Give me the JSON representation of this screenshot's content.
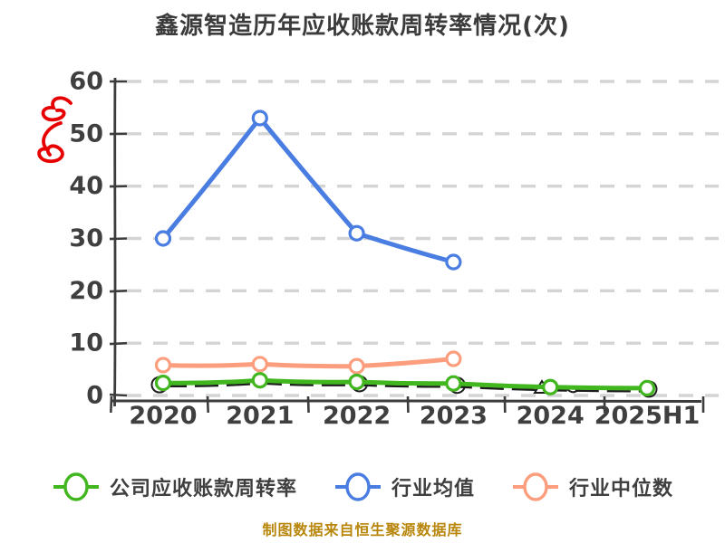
{
  "title": "鑫源智造历年应收账款周转率情况(次)",
  "footer": "制图数据来自恒生聚源数据库",
  "y_axis_unit_label": "次",
  "colors": {
    "company": "#41b61e",
    "industry_avg": "#4a7de2",
    "industry_median": "#fc9e7e",
    "grid": "#d4d4d4",
    "axis": "#3c3c3c",
    "tick_text": "#3f3f3f",
    "title_text": "#3b3b3b",
    "footer_text": "#b8860b",
    "unit_scribble": "#e60000",
    "sketch": "#1c1c1c"
  },
  "chart_data": {
    "type": "line",
    "categories": [
      "2020",
      "2021",
      "2022",
      "2023",
      "2024",
      "2025H1"
    ],
    "series": [
      {
        "name": "公司应收账款周转率",
        "color": "#41b61e",
        "values": [
          2.4,
          2.9,
          2.6,
          2.3,
          1.6,
          1.4
        ]
      },
      {
        "name": "行业均值",
        "color": "#4a7de2",
        "values": [
          30,
          53,
          31,
          25.5,
          null,
          null
        ]
      },
      {
        "name": "行业中位数",
        "color": "#fc9e7e",
        "values": [
          5.8,
          6.0,
          5.6,
          7.0,
          null,
          null
        ]
      }
    ],
    "title": "鑫源智造历年应收账款周转率情况(次)",
    "xlabel": "",
    "ylabel": "次",
    "ylim": [
      0,
      60
    ],
    "yticks": [
      0,
      10,
      20,
      30,
      40,
      50,
      60
    ],
    "grid": "horizontal-dashed",
    "legend_position": "bottom",
    "style": "hand-drawn (xkcd-like)"
  }
}
